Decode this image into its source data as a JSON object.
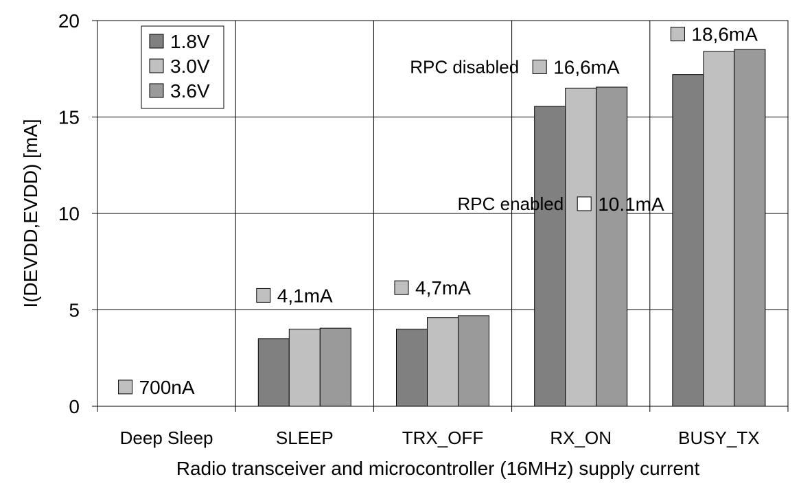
{
  "chart_data": {
    "type": "bar",
    "categories": [
      "Deep Sleep",
      "SLEEP",
      "TRX_OFF",
      "RX_ON",
      "BUSY_TX"
    ],
    "series": [
      {
        "name": "1.8V",
        "color": "#808080",
        "values": [
          0,
          3.5,
          4.0,
          15.55,
          17.2
        ]
      },
      {
        "name": "3.0V",
        "color": "#c0c0c0",
        "values": [
          0,
          4.0,
          4.6,
          16.5,
          18.4
        ]
      },
      {
        "name": "3.6V",
        "color": "#9a9a9a",
        "values": [
          0,
          4.05,
          4.7,
          16.55,
          18.5
        ]
      }
    ],
    "xlabel": "Radio transceiver and microcontroller (16MHz) supply current",
    "ylabel": "I(DEVDD,EVDD) [mA]",
    "ylim": [
      0,
      20
    ],
    "yticks": [
      0,
      5,
      10,
      15,
      20
    ],
    "grid": true,
    "legend_position": "top-left",
    "annotations": [
      {
        "text": "700nA",
        "category": "Deep Sleep",
        "y": 1.0,
        "box": "#c0c0c0"
      },
      {
        "text": "4,1mA",
        "category": "SLEEP",
        "y": 5.75,
        "box": "#c0c0c0"
      },
      {
        "text": "4,7mA",
        "category": "TRX_OFF",
        "y": 6.15,
        "box": "#c0c0c0"
      },
      {
        "text": "16,6mA",
        "category": "RX_ON",
        "y": 17.6,
        "box": "#c0c0c0",
        "prefix": "RPC disabled"
      },
      {
        "text": "10.1mA",
        "category": "RX_ON",
        "y": 10.5,
        "box": "#ffffff",
        "prefix": "RPC enabled"
      },
      {
        "text": "18,6mA",
        "category": "BUSY_TX",
        "y": 19.3,
        "box": "#c0c0c0"
      }
    ]
  }
}
